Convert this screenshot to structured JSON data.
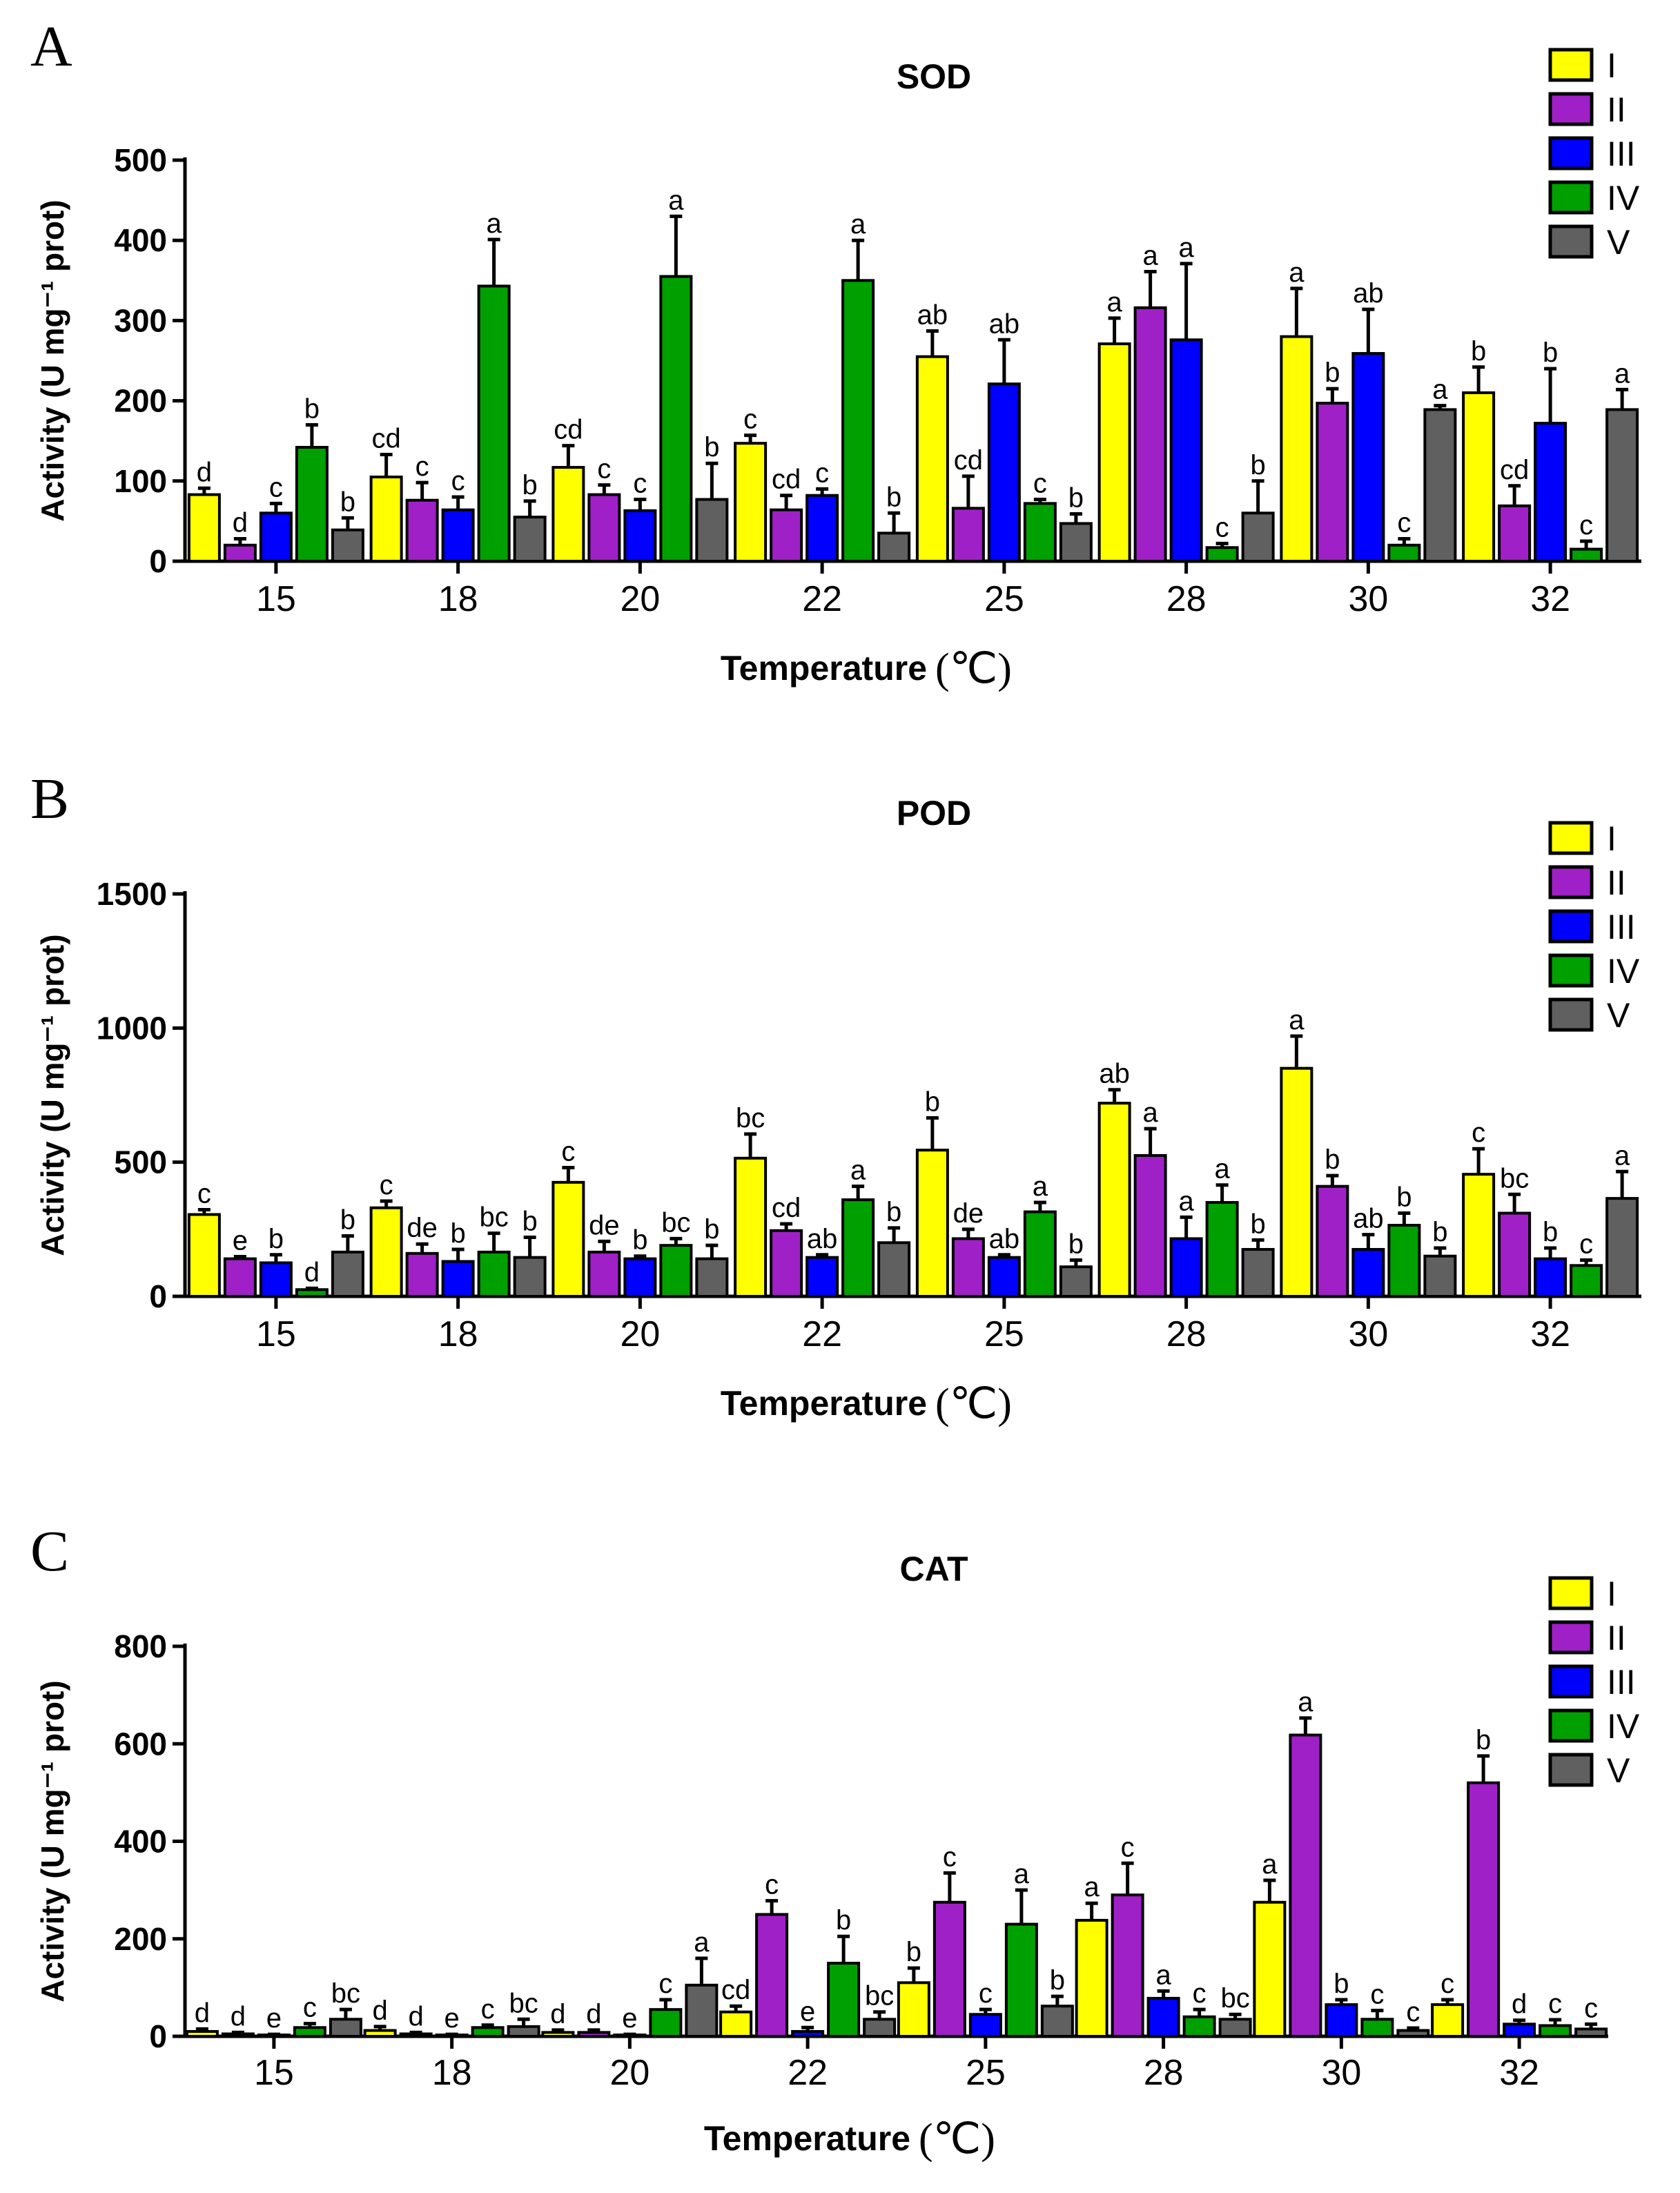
{
  "colors": {
    "I": "#ffff00",
    "II": "#a020c8",
    "III": "#0000ff",
    "IV": "#00a000",
    "V": "#606060"
  },
  "chart_data": [
    {
      "type": "bar",
      "panel": "A",
      "title": "SOD",
      "ylabel": "Activity (U mg⁻¹ prot)",
      "xlabel": "Temperature",
      "xunit": "(℃)",
      "ylim": [
        0,
        500
      ],
      "yticks": [
        "0",
        "100",
        "200",
        "300",
        "400",
        "500"
      ],
      "categories": [
        "15",
        "18",
        "20",
        "22",
        "25",
        "28",
        "30",
        "32"
      ],
      "series": [
        {
          "name": "I",
          "values": [
            83,
            105,
            117,
            147,
            255,
            271,
            280,
            210
          ],
          "errors": [
            8,
            28,
            27,
            10,
            32,
            32,
            60,
            32
          ],
          "labels": [
            "d",
            "cd",
            "cd",
            "c",
            "ab",
            "a",
            "a",
            "b"
          ]
        },
        {
          "name": "II",
          "values": [
            20,
            76,
            83,
            64,
            66,
            316,
            197,
            69
          ],
          "errors": [
            8,
            22,
            12,
            18,
            40,
            45,
            18,
            25
          ],
          "labels": [
            "d",
            "c",
            "c",
            "cd",
            "cd",
            "a",
            "b",
            "cd"
          ]
        },
        {
          "name": "III",
          "values": [
            60,
            64,
            63,
            82,
            221,
            276,
            259,
            172
          ],
          "errors": [
            12,
            16,
            14,
            8,
            55,
            95,
            55,
            68
          ],
          "labels": [
            "c",
            "c",
            "c",
            "c",
            "ab",
            "a",
            "ab",
            "b"
          ]
        },
        {
          "name": "IV",
          "values": [
            142,
            343,
            355,
            350,
            72,
            17,
            20,
            15
          ],
          "errors": [
            28,
            58,
            75,
            50,
            5,
            5,
            8,
            10
          ],
          "labels": [
            "b",
            "a",
            "a",
            "a",
            "c",
            "c",
            "c",
            "c"
          ]
        },
        {
          "name": "V",
          "values": [
            39,
            55,
            77,
            35,
            47,
            60,
            189,
            189
          ],
          "errors": [
            15,
            20,
            45,
            25,
            12,
            40,
            5,
            25
          ],
          "labels": [
            "b",
            "b",
            "b",
            "b",
            "b",
            "b",
            "a",
            "a"
          ]
        }
      ]
    },
    {
      "type": "bar",
      "panel": "B",
      "title": "POD",
      "ylabel": "Activity (U mg⁻¹ prot)",
      "xlabel": "Temperature",
      "xunit": "(℃)",
      "ylim": [
        0,
        1500
      ],
      "yticks": [
        "0",
        "500",
        "1000",
        "1500"
      ],
      "categories": [
        "15",
        "18",
        "20",
        "22",
        "25",
        "28",
        "30",
        "32"
      ],
      "series": [
        {
          "name": "I",
          "values": [
            305,
            330,
            425,
            515,
            545,
            720,
            850,
            455
          ],
          "errors": [
            18,
            25,
            55,
            90,
            120,
            50,
            120,
            95
          ],
          "labels": [
            "c",
            "c",
            "c",
            "bc",
            "b",
            "ab",
            "a",
            "c"
          ]
        },
        {
          "name": "II",
          "values": [
            140,
            160,
            165,
            245,
            215,
            525,
            410,
            310
          ],
          "errors": [
            8,
            35,
            40,
            25,
            35,
            100,
            40,
            70
          ],
          "labels": [
            "e",
            "de",
            "de",
            "cd",
            "de",
            "a",
            "b",
            "bc"
          ]
        },
        {
          "name": "III",
          "values": [
            125,
            130,
            140,
            145,
            145,
            215,
            175,
            140
          ],
          "errors": [
            30,
            45,
            10,
            10,
            10,
            80,
            55,
            40
          ],
          "labels": [
            "b",
            "b",
            "b",
            "ab",
            "ab",
            "a",
            "ab",
            "b"
          ]
        },
        {
          "name": "IV",
          "values": [
            25,
            165,
            190,
            360,
            315,
            350,
            265,
            115
          ],
          "errors": [
            5,
            70,
            25,
            50,
            35,
            65,
            45,
            20
          ],
          "labels": [
            "d",
            "bc",
            "bc",
            "a",
            "a",
            "a",
            "b",
            "c"
          ]
        },
        {
          "name": "V",
          "values": [
            165,
            145,
            140,
            200,
            110,
            175,
            150,
            365
          ],
          "errors": [
            60,
            75,
            50,
            55,
            25,
            35,
            30,
            100
          ],
          "labels": [
            "b",
            "b",
            "b",
            "b",
            "b",
            "b",
            "b",
            "a"
          ]
        }
      ]
    },
    {
      "type": "bar",
      "panel": "C",
      "title": "CAT",
      "ylabel": "Activity (U mg⁻¹ prot)",
      "xlabel": "Temperature",
      "xunit": "(℃)",
      "ylim": [
        0,
        800
      ],
      "yticks": [
        "0",
        "200",
        "400",
        "600",
        "800"
      ],
      "categories": [
        "15",
        "18",
        "20",
        "22",
        "25",
        "28",
        "30",
        "32"
      ],
      "series": [
        {
          "name": "I",
          "values": [
            10,
            12,
            8,
            50,
            110,
            238,
            275,
            65
          ],
          "errors": [
            5,
            8,
            5,
            12,
            30,
            35,
            45,
            10
          ],
          "labels": [
            "d",
            "d",
            "d",
            "cd",
            "b",
            "a",
            "a",
            "c"
          ]
        },
        {
          "name": "II",
          "values": [
            5,
            5,
            8,
            250,
            275,
            290,
            618,
            520
          ],
          "errors": [
            3,
            3,
            5,
            28,
            60,
            65,
            35,
            55
          ],
          "labels": [
            "d",
            "d",
            "d",
            "c",
            "c",
            "c",
            "a",
            "b"
          ]
        },
        {
          "name": "III",
          "values": [
            2,
            2,
            2,
            10,
            45,
            78,
            65,
            25
          ],
          "errors": [
            2,
            2,
            2,
            8,
            10,
            15,
            10,
            8
          ],
          "labels": [
            "e",
            "e",
            "e",
            "e",
            "c",
            "a",
            "b",
            "d"
          ]
        },
        {
          "name": "IV",
          "values": [
            18,
            18,
            55,
            150,
            230,
            40,
            35,
            22
          ],
          "errors": [
            8,
            5,
            20,
            55,
            70,
            15,
            18,
            12
          ],
          "labels": [
            "c",
            "c",
            "c",
            "b",
            "a",
            "c",
            "c",
            "c"
          ]
        },
        {
          "name": "V",
          "values": [
            35,
            20,
            105,
            35,
            62,
            35,
            12,
            15
          ],
          "errors": [
            20,
            15,
            55,
            15,
            20,
            10,
            5,
            10
          ],
          "labels": [
            "bc",
            "bc",
            "a",
            "bc",
            "b",
            "bc",
            "c",
            "c"
          ]
        }
      ]
    }
  ]
}
